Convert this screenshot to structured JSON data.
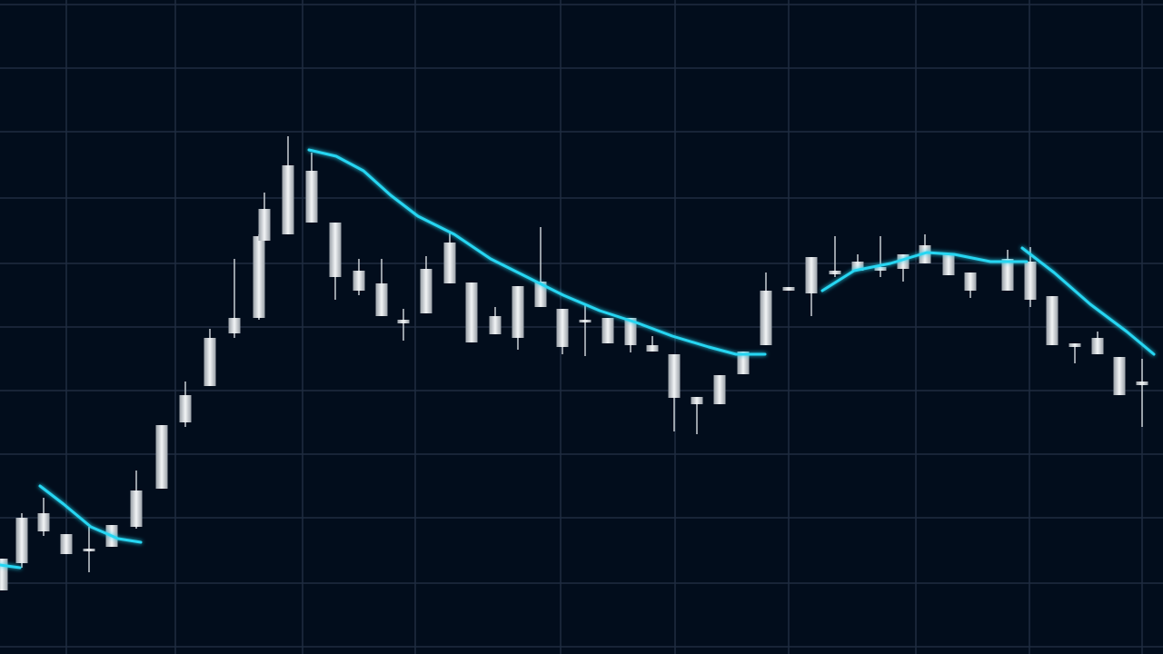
{
  "chart_data": {
    "type": "candlestick",
    "xlim": [
      0,
      1280
    ],
    "ylim": [
      0,
      720
    ],
    "xticks": [
      73,
      193,
      333,
      457,
      617,
      743,
      868,
      1008,
      1133,
      1257
    ],
    "yticks": [
      8,
      78,
      150,
      220,
      290,
      360,
      430,
      502,
      575,
      645,
      715
    ],
    "grid": true,
    "grid_color": "#1f2d40",
    "background": "#020d1c",
    "candle_color": "#c9ced4",
    "x": [
      2,
      24,
      48,
      73,
      98,
      123,
      150,
      178,
      204,
      231,
      258,
      285,
      291,
      317,
      343,
      369,
      395,
      420,
      444,
      469,
      495,
      519,
      545,
      570,
      595,
      619,
      644,
      669,
      694,
      718,
      742,
      767,
      792,
      818,
      843,
      868,
      893,
      919,
      944,
      969,
      994,
      1018,
      1044,
      1068,
      1109,
      1134,
      1158,
      1183,
      1208,
      1232,
      1257
    ],
    "open": [
      70,
      100,
      135,
      110,
      113,
      118,
      140,
      182,
      255,
      295,
      353,
      370,
      455,
      462,
      475,
      415,
      400,
      372,
      364,
      375,
      408,
      343,
      352,
      348,
      382,
      338,
      365,
      342,
      340,
      333,
      282,
      275,
      275,
      308,
      340,
      400,
      397,
      418,
      422,
      422,
      424,
      430,
      417,
      400,
      400,
      390,
      340,
      338,
      330,
      285,
      296
    ],
    "high": [
      105,
      155,
      172,
      132,
      140,
      142,
      202,
      252,
      300,
      358,
      435,
      462,
      508,
      570,
      552,
      475,
      435,
      435,
      380,
      438,
      465,
      409,
      382,
      405,
      470,
      380,
      385,
      370,
      370,
      350,
      330,
      283,
      307,
      333,
      420,
      404,
      437,
      460,
      440,
      460,
      440,
      462,
      440,
      420,
      445,
      448,
      394,
      342,
      355,
      327,
      325
    ],
    "low": [
      70,
      95,
      130,
      110,
      90,
      118,
      138,
      182,
      250,
      295,
      348,
      368,
      455,
      462,
      475,
      390,
      395,
      372,
      345,
      375,
      408,
      343,
      352,
      335,
      382,
      330,
      328,
      342,
      332,
      333,
      245,
      242,
      275,
      308,
      340,
      400,
      372,
      415,
      422,
      415,
      410,
      430,
      417,
      392,
      400,
      382,
      340,
      320,
      330,
      285,
      250
    ],
    "close": [
      105,
      150,
      155,
      132,
      116,
      142,
      180,
      252,
      285,
      348,
      370,
      460,
      490,
      538,
      532,
      475,
      422,
      408,
      368,
      424,
      453,
      409,
      372,
      405,
      410,
      380,
      368,
      370,
      370,
      340,
      330,
      283,
      307,
      333,
      400,
      404,
      437,
      422,
      432,
      426,
      440,
      450,
      440,
      420,
      435,
      432,
      394,
      342,
      348,
      327,
      300
    ],
    "line": {
      "color": "#27d6f2",
      "x": [
        0,
        22,
        null,
        44,
        70,
        100,
        130,
        155,
        null,
        340,
        370,
        400,
        430,
        460,
        500,
        540,
        580,
        620,
        660,
        700,
        740,
        780,
        810,
        842,
        null,
        905,
        940,
        980,
        1020,
        1050,
        1090,
        1130,
        null,
        1125,
        1160,
        1200,
        1240,
        1270
      ],
      "values": [
        98,
        95,
        null,
        185,
        165,
        140,
        127,
        123,
        null,
        555,
        548,
        532,
        505,
        482,
        462,
        435,
        415,
        395,
        378,
        365,
        350,
        338,
        330,
        330,
        null,
        400,
        422,
        430,
        442,
        440,
        432,
        432,
        null,
        447,
        420,
        385,
        355,
        330
      ]
    }
  }
}
